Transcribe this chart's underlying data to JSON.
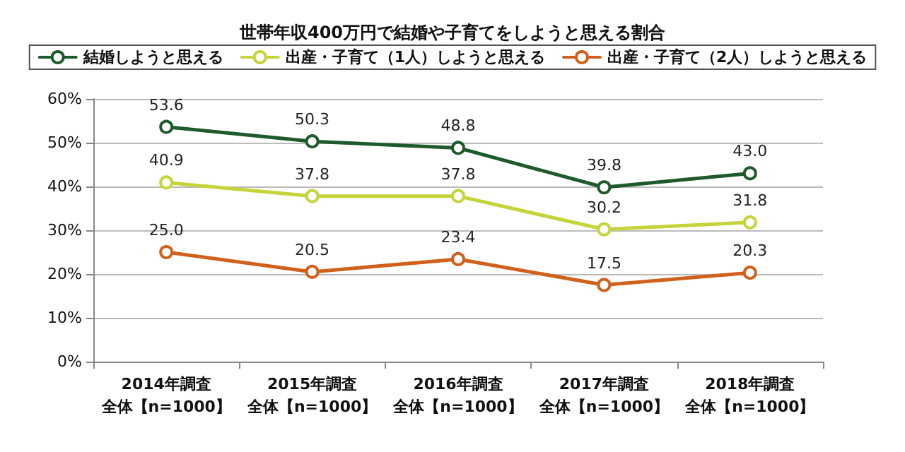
{
  "chart_data": {
    "type": "line",
    "title": "世帯年収400万円で結婚や子育てをしようと思える割合",
    "categories": [
      "2014年調査全体【n=1000】",
      "2015年調査全体【n=1000】",
      "2016年調査全体【n=1000】",
      "2017年調査全体【n=1000】",
      "2018年調査全体【n=1000】"
    ],
    "series": [
      {
        "name": "結婚しようと思える",
        "color": "#1e5a2c",
        "values": [
          53.6,
          50.3,
          48.8,
          39.8,
          43.0
        ],
        "value_labels": [
          "53.6",
          "50.3",
          "48.8",
          "39.8",
          "43.0"
        ]
      },
      {
        "name": "出産・子育て（1人）しようと思える",
        "color": "#c5d43a",
        "values": [
          40.9,
          37.8,
          37.8,
          30.2,
          31.8
        ],
        "value_labels": [
          "40.9",
          "37.8",
          "37.8",
          "30.2",
          "31.8"
        ]
      },
      {
        "name": "出産・子育て（2人）しようと思える",
        "color": "#d0601c",
        "values": [
          25.0,
          20.5,
          23.4,
          17.5,
          20.3
        ],
        "value_labels": [
          "25.0",
          "20.5",
          "23.4",
          "17.5",
          "20.3"
        ]
      }
    ],
    "ylim": [
      0,
      60
    ],
    "yticks": [
      {
        "value": 0,
        "label": "0%"
      },
      {
        "value": 10,
        "label": "10%"
      },
      {
        "value": 20,
        "label": "20%"
      },
      {
        "value": 30,
        "label": "30%"
      },
      {
        "value": 40,
        "label": "40%"
      },
      {
        "value": 50,
        "label": "50%"
      },
      {
        "value": 60,
        "label": "60%"
      }
    ],
    "grid": "y",
    "legend": "top",
    "marker": "circle",
    "line_style": "solid"
  }
}
